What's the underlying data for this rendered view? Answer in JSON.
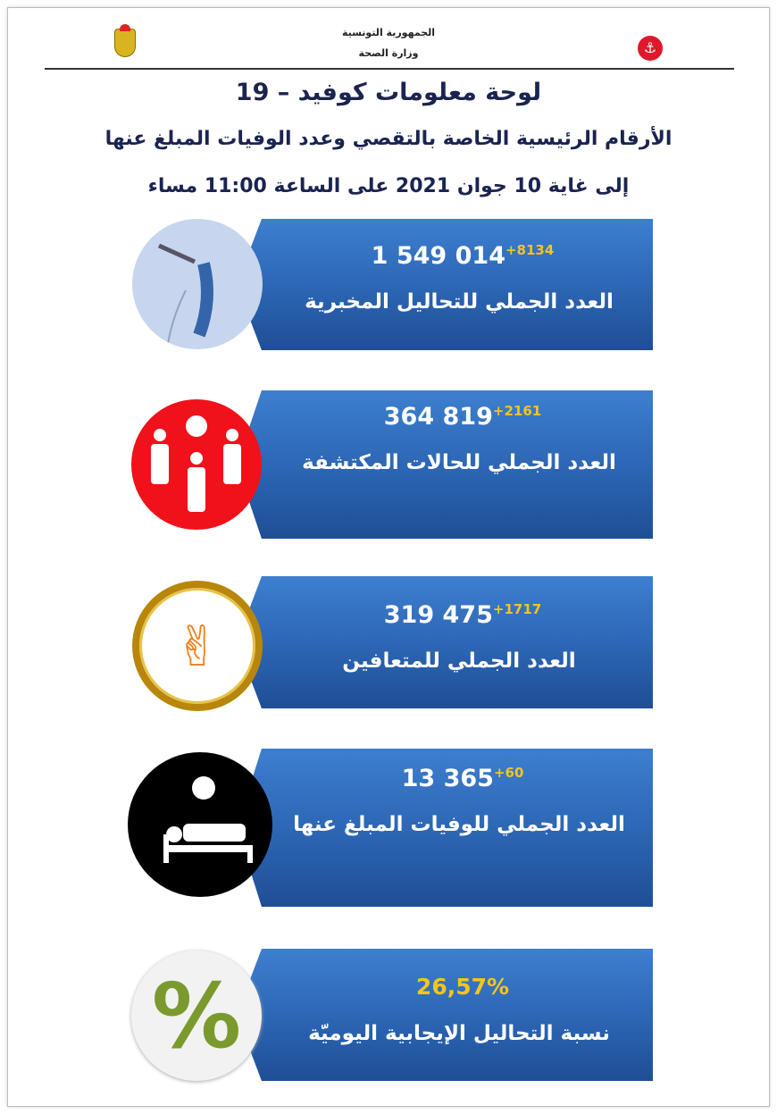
{
  "header": {
    "line1": "الجمهورية التونسية",
    "line2": "وزارة الصحة"
  },
  "title": "لوحة معلومات كوفيد – 19",
  "subtitle": "الأرقام الرئيسية الخاصة بالتقصي وعدد الوفيات المبلغ عنها",
  "date_line": "إلى غاية 10 جوان 2021 على الساعة 11:00 مساء",
  "colors": {
    "panel": "#2a62b0",
    "increment": "#f5c518",
    "title": "#1b2450"
  },
  "cards": [
    {
      "icon": "nasal-swab-icon",
      "total": "1 549 014",
      "increment": "+8134",
      "label": "العدد الجملي للتحاليل المخبرية"
    },
    {
      "icon": "people-virus-icon",
      "total": "364 819",
      "increment": "+2161",
      "label": "العدد  الجملي للحالات المكتشفة"
    },
    {
      "icon": "victory-hand-icon",
      "total": "319 475",
      "increment": "+1717",
      "label": "العدد الجملي للمتعافين"
    },
    {
      "icon": "patient-bed-icon",
      "total": "13 365",
      "increment": "+60",
      "label": "العدد الجملي للوفيات المبلغ عنها"
    },
    {
      "icon": "percent-icon",
      "total": "26,57%",
      "label": "نسبة التحاليل الإيجابية اليوميّة"
    }
  ]
}
